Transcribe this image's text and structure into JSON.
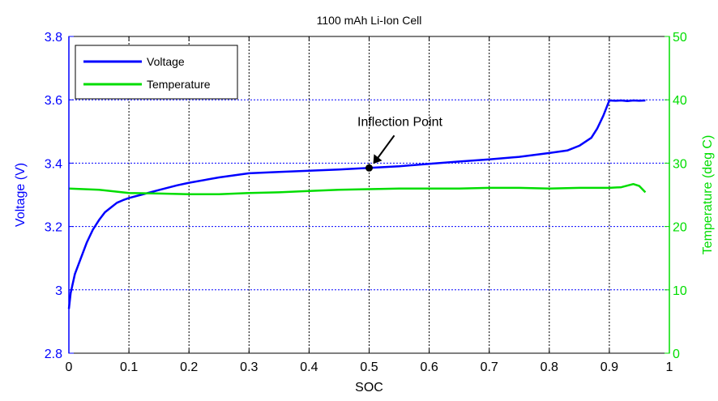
{
  "chart_data": {
    "type": "line",
    "title": "1100 mAh Li-Ion Cell",
    "xlabel": "SOC",
    "ylabel_left": "Voltage (V)",
    "ylabel_right": "Temperature (deg C)",
    "xlim": [
      0,
      1
    ],
    "ylim_left": [
      2.8,
      3.8
    ],
    "ylim_right": [
      0,
      50
    ],
    "x_ticks": [
      "0",
      "0.1",
      "0.2",
      "0.3",
      "0.4",
      "0.5",
      "0.6",
      "0.7",
      "0.8",
      "0.9",
      "1"
    ],
    "y_left_ticks": [
      "2.8",
      "3",
      "3.2",
      "3.4",
      "3.6",
      "3.8"
    ],
    "y_right_ticks": [
      "0",
      "10",
      "20",
      "30",
      "40",
      "50"
    ],
    "grid": true,
    "legend_position": "top-left",
    "colors": {
      "left_axis": "#0000ff",
      "right_axis": "#00dd00",
      "grid": "#0000ff"
    },
    "series": [
      {
        "name": "Voltage",
        "axis": "left",
        "color": "#0000ff",
        "x": [
          0,
          0.003,
          0.01,
          0.02,
          0.03,
          0.04,
          0.05,
          0.06,
          0.07,
          0.08,
          0.09,
          0.1,
          0.12,
          0.15,
          0.18,
          0.2,
          0.25,
          0.3,
          0.35,
          0.4,
          0.45,
          0.5,
          0.55,
          0.6,
          0.65,
          0.7,
          0.75,
          0.8,
          0.83,
          0.85,
          0.87,
          0.88,
          0.89,
          0.9,
          0.91,
          0.92,
          0.93,
          0.94,
          0.95,
          0.96
        ],
        "y": [
          2.94,
          2.99,
          3.05,
          3.1,
          3.15,
          3.19,
          3.22,
          3.245,
          3.26,
          3.275,
          3.283,
          3.29,
          3.3,
          3.315,
          3.33,
          3.338,
          3.355,
          3.368,
          3.372,
          3.376,
          3.38,
          3.385,
          3.39,
          3.398,
          3.405,
          3.412,
          3.42,
          3.432,
          3.44,
          3.455,
          3.48,
          3.51,
          3.55,
          3.598,
          3.597,
          3.598,
          3.596,
          3.598,
          3.597,
          3.598
        ]
      },
      {
        "name": "Temperature",
        "axis": "right",
        "color": "#00dd00",
        "x": [
          0,
          0.05,
          0.1,
          0.15,
          0.2,
          0.25,
          0.3,
          0.35,
          0.4,
          0.45,
          0.5,
          0.55,
          0.6,
          0.65,
          0.7,
          0.75,
          0.8,
          0.85,
          0.9,
          0.92,
          0.94,
          0.95,
          0.96
        ],
        "y": [
          26.0,
          25.8,
          25.3,
          25.2,
          25.1,
          25.1,
          25.3,
          25.4,
          25.6,
          25.8,
          25.9,
          26.0,
          26.0,
          26.0,
          26.1,
          26.1,
          26.0,
          26.1,
          26.1,
          26.2,
          26.7,
          26.4,
          25.4
        ]
      }
    ],
    "annotations": [
      {
        "text": "Inflection Point",
        "x": 0.5,
        "y": 3.385,
        "axis": "left"
      }
    ]
  }
}
